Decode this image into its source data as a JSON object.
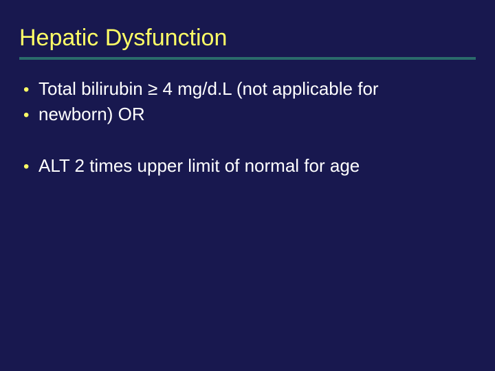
{
  "slide": {
    "title": "Hepatic Dysfunction",
    "bullets": [
      {
        "text": "Total bilirubin ≥ 4 mg/d.L (not applicable for",
        "gap_after": false
      },
      {
        "text": "newborn) OR",
        "gap_after": true
      },
      {
        "text": "ALT 2 times upper limit of normal for age",
        "gap_after": false
      }
    ]
  },
  "style": {
    "background_color": "#18184f",
    "title_color": "#ffff66",
    "title_fontsize": 34,
    "underline_color": "#2a6b6b",
    "underline_width": 4,
    "bullet_color": "#ffff66",
    "text_color": "#ffffff",
    "text_fontsize": 26,
    "font_family": "Arial"
  }
}
